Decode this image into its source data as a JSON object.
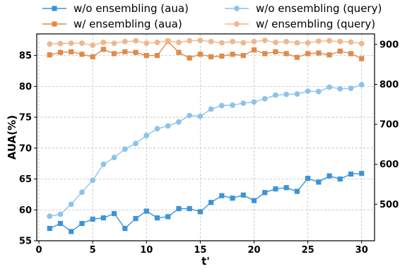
{
  "chart_data": {
    "type": "line",
    "xlabel": "t'",
    "ylabel": "AUA(%)",
    "y2label": "",
    "xlim": [
      -0.2,
      31.2
    ],
    "ylim": [
      55,
      88.5
    ],
    "y2lim": [
      408.7,
      926.3
    ],
    "xticks": [
      "0",
      "5",
      "10",
      "15",
      "20",
      "25",
      "30"
    ],
    "yticks": [
      "55",
      "60",
      "65",
      "70",
      "75",
      "80",
      "85"
    ],
    "y2ticks": [
      "500",
      "600",
      "700",
      "800",
      "900"
    ],
    "grid": true,
    "legend_placement": "top-center",
    "x": [
      1,
      2,
      3,
      4,
      5,
      6,
      7,
      8,
      9,
      10,
      11,
      12,
      13,
      14,
      15,
      16,
      17,
      18,
      19,
      20,
      21,
      22,
      23,
      24,
      25,
      26,
      27,
      28,
      29,
      30
    ],
    "series": [
      {
        "name": "w/o ensembling (aua)",
        "axis": "left",
        "marker": "square",
        "color": "#3b94d6",
        "values": [
          57.0,
          57.8,
          56.5,
          57.8,
          58.5,
          58.7,
          59.4,
          57.0,
          58.6,
          59.8,
          58.7,
          58.9,
          60.2,
          60.2,
          59.7,
          61.2,
          62.3,
          61.9,
          62.4,
          61.5,
          62.8,
          63.4,
          63.6,
          63.0,
          65.1,
          64.5,
          65.5,
          65.0,
          65.8,
          65.9
        ]
      },
      {
        "name": "w/ ensembling (aua)",
        "axis": "left",
        "marker": "square",
        "color": "#e08a4a",
        "values": [
          85.1,
          85.5,
          85.6,
          85.2,
          84.8,
          86.0,
          85.3,
          85.6,
          85.5,
          85.0,
          85.0,
          87.3,
          85.5,
          84.6,
          85.2,
          84.8,
          84.9,
          85.2,
          85.0,
          85.9,
          85.3,
          85.6,
          85.3,
          84.7,
          85.3,
          85.4,
          85.1,
          85.7,
          85.3,
          84.5
        ]
      },
      {
        "name": "w/o ensembling (query)",
        "axis": "right",
        "marker": "circle",
        "color": "#8cc4ea",
        "values": [
          470,
          475,
          500,
          530,
          560,
          600,
          617,
          638,
          652,
          672,
          689,
          696,
          706,
          722,
          720,
          738,
          747,
          748,
          753,
          756,
          764,
          773,
          775,
          776,
          783,
          782,
          793,
          789,
          790,
          799
        ]
      },
      {
        "name": "w/ ensembling (query)",
        "axis": "right",
        "marker": "circle",
        "color": "#f0b78c",
        "values": [
          901,
          902,
          903,
          903,
          898,
          905,
          903,
          907,
          909,
          903,
          905,
          909,
          905,
          909,
          910,
          907,
          904,
          907,
          904,
          907,
          910,
          905,
          907,
          904,
          904,
          908,
          909,
          907,
          906,
          902
        ]
      }
    ]
  }
}
